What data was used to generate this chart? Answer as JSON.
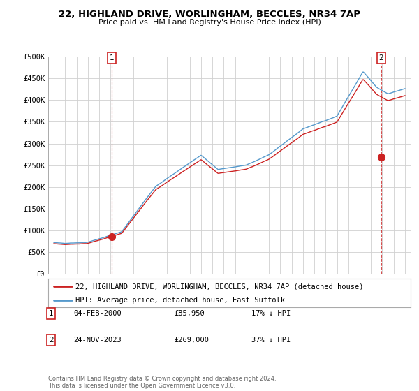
{
  "title_line1": "22, HIGHLAND DRIVE, WORLINGHAM, BECCLES, NR34 7AP",
  "title_line2": "Price paid vs. HM Land Registry's House Price Index (HPI)",
  "background_color": "#ffffff",
  "plot_bg_color": "#ffffff",
  "grid_color": "#d0d0d0",
  "line1_color": "#cc2222",
  "line2_color": "#5599cc",
  "legend_entries": [
    "22, HIGHLAND DRIVE, WORLINGHAM, BECCLES, NR34 7AP (detached house)",
    "HPI: Average price, detached house, East Suffolk"
  ],
  "ytick_labels": [
    "£0",
    "£50K",
    "£100K",
    "£150K",
    "£200K",
    "£250K",
    "£300K",
    "£350K",
    "£400K",
    "£450K",
    "£500K"
  ],
  "yticks": [
    0,
    50000,
    100000,
    150000,
    200000,
    250000,
    300000,
    350000,
    400000,
    450000,
    500000
  ],
  "annotation1_label": "1",
  "annotation1_date": "04-FEB-2000",
  "annotation1_price": "£85,950",
  "annotation1_hpi": "17% ↓ HPI",
  "annotation2_label": "2",
  "annotation2_date": "24-NOV-2023",
  "annotation2_price": "£269,000",
  "annotation2_hpi": "37% ↓ HPI",
  "footer": "Contains HM Land Registry data © Crown copyright and database right 2024.\nThis data is licensed under the Open Government Licence v3.0.",
  "marker1_x": 2000.1,
  "marker1_y": 85950,
  "marker2_x": 2023.9,
  "marker2_y": 269000,
  "vline1_x": 2000.1,
  "vline2_x": 2023.9,
  "xmin": 1994.5,
  "xmax": 2026.5,
  "ymin": 0,
  "ymax": 500000
}
